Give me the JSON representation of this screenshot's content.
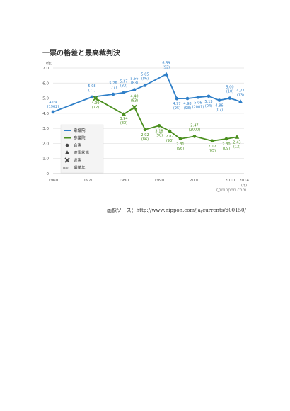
{
  "title": "一票の格差と最高裁判決",
  "caption": "画像ソース：http://www.nippon.com/ja/currents/d00150/",
  "source_mark": "nippon.com",
  "colors": {
    "shugiin": "#2f7fc8",
    "sangiin": "#4a8f1e",
    "grid": "#e2e2e2",
    "axis_text": "#555555"
  },
  "chart_data": {
    "type": "line",
    "title": "一票の格差と最高裁判決",
    "ylabel": "(倍)",
    "xlabel": "(年)",
    "xlim": [
      1960,
      2014
    ],
    "ylim": [
      0,
      7
    ],
    "x_ticks": [
      1960,
      1970,
      1980,
      1990,
      2000,
      2010,
      2014
    ],
    "y_ticks": [
      0,
      1.0,
      2.0,
      3.0,
      4.0,
      5.0,
      6.0,
      7.0
    ],
    "y_tick_labels": [
      "0",
      "1.0",
      "2.0",
      "3.0",
      "4.0",
      "5.0",
      "6.0",
      "7.0"
    ],
    "grid": true,
    "legend_position": "left-center",
    "legend": [
      {
        "label": "衆議院",
        "symbol": "line-blue"
      },
      {
        "label": "参議院",
        "symbol": "line-green"
      },
      {
        "label": "合憲",
        "symbol": "circle"
      },
      {
        "label": "違憲状態",
        "symbol": "triangle"
      },
      {
        "label": "違憲",
        "symbol": "cross"
      },
      {
        "label": "選挙年",
        "symbol": "paren",
        "prefix": "(00)"
      }
    ],
    "series": [
      {
        "name": "衆議院",
        "color": "#2f7fc8",
        "points": [
          {
            "x": 1960,
            "y": 4.09,
            "label": "4.09",
            "sublabel": "(1962)",
            "marker": "circle"
          },
          {
            "x": 1971,
            "y": 5.08,
            "label": "5.08",
            "sublabel": "(71)",
            "marker": "circle"
          },
          {
            "x": 1977,
            "y": 5.26,
            "label": "5.26",
            "sublabel": "(77)",
            "marker": "circle"
          },
          {
            "x": 1980,
            "y": 5.37,
            "label": "5.37",
            "sublabel": "(80)",
            "marker": "circle"
          },
          {
            "x": 1983,
            "y": 5.56,
            "label": "5.56",
            "sublabel": "(83)",
            "marker": "circle"
          },
          {
            "x": 1986,
            "y": 5.85,
            "label": "5.85",
            "sublabel": "(86)",
            "marker": "circle"
          },
          {
            "x": 1992,
            "y": 6.59,
            "label": "6.59",
            "sublabel": "(92)",
            "marker": "triangle"
          },
          {
            "x": 1995,
            "y": 4.97,
            "label": "4.97",
            "sublabel": "(95)",
            "marker": "circle"
          },
          {
            "x": 1998,
            "y": 4.98,
            "label": "4.98",
            "sublabel": "(98)",
            "marker": "circle"
          },
          {
            "x": 2001,
            "y": 5.06,
            "label": "5.06",
            "sublabel": "(2001)",
            "marker": "circle"
          },
          {
            "x": 2004,
            "y": 5.13,
            "label": "5.13",
            "sublabel": "(04)",
            "marker": "circle"
          },
          {
            "x": 2007,
            "y": 4.86,
            "label": "4.86",
            "sublabel": "(07)",
            "marker": "circle"
          },
          {
            "x": 2010,
            "y": 5.0,
            "label": "5.00",
            "sublabel": "(10)",
            "marker": "circle"
          },
          {
            "x": 2013,
            "y": 4.77,
            "label": "4.77",
            "sublabel": "(13)",
            "marker": "triangle"
          }
        ]
      },
      {
        "name": "参議院",
        "color": "#4a8f1e",
        "points": [
          {
            "x": 1972,
            "y": 4.99,
            "label": "4.99",
            "sublabel": "(72)",
            "marker": "cross"
          },
          {
            "x": 1980,
            "y": 3.94,
            "label": "3.94",
            "sublabel": "(80)",
            "marker": "triangle"
          },
          {
            "x": 1983,
            "y": 4.4,
            "label": "4.40",
            "sublabel": "(83)",
            "marker": "cross"
          },
          {
            "x": 1986,
            "y": 2.92,
            "label": "2.92",
            "sublabel": "(86)",
            "marker": "circle"
          },
          {
            "x": 1990,
            "y": 3.18,
            "label": "3.18",
            "sublabel": "(90)",
            "marker": "circle"
          },
          {
            "x": 1993,
            "y": 2.82,
            "label": "2.82",
            "sublabel": "(93)",
            "marker": "circle"
          },
          {
            "x": 1996,
            "y": 2.31,
            "label": "2.31",
            "sublabel": "(96)",
            "marker": "circle"
          },
          {
            "x": 2000,
            "y": 2.47,
            "label": "2.47",
            "sublabel": "(2000)",
            "marker": "circle"
          },
          {
            "x": 2005,
            "y": 2.17,
            "label": "2.17",
            "sublabel": "(05)",
            "marker": "circle"
          },
          {
            "x": 2009,
            "y": 2.3,
            "label": "2.30",
            "sublabel": "(09)",
            "marker": "circle"
          },
          {
            "x": 2012,
            "y": 2.43,
            "label": "2.43",
            "sublabel": "(12)",
            "marker": "triangle"
          }
        ]
      }
    ]
  }
}
